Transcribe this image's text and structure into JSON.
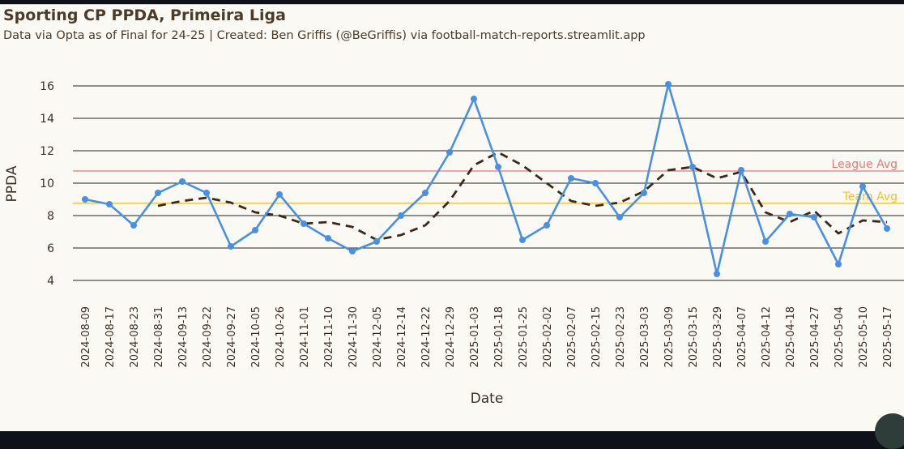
{
  "header": {
    "title": "Sporting CP PPDA, Primeira Liga",
    "subtitle": "Data via Opta as of Final for 24-25 | Created: Ben Griffis (@BeGriffis) via football-match-reports.streamlit.app"
  },
  "colors": {
    "background": "#fbf9f4",
    "series": "#4a90e2",
    "rolling": "#3a2a1a",
    "league_avg": "#e07b7b",
    "team_avg": "#f2c12e",
    "grid": "#222222"
  },
  "chart_data": {
    "type": "line",
    "title": "Sporting CP PPDA, Primeira Liga",
    "xlabel": "Date",
    "ylabel": "PPDA",
    "ylim": [
      3.5,
      16.5
    ],
    "yticks": [
      4,
      6,
      8,
      10,
      12,
      14,
      16
    ],
    "grid": "horizontal",
    "categories": [
      "2024-08-09",
      "2024-08-17",
      "2024-08-23",
      "2024-08-31",
      "2024-09-13",
      "2024-09-22",
      "2024-09-27",
      "2024-10-05",
      "2024-10-26",
      "2024-11-01",
      "2024-11-10",
      "2024-11-30",
      "2024-12-05",
      "2024-12-14",
      "2024-12-22",
      "2024-12-29",
      "2025-01-03",
      "2025-01-18",
      "2025-01-25",
      "2025-02-02",
      "2025-02-07",
      "2025-02-15",
      "2025-02-23",
      "2025-03-03",
      "2025-03-09",
      "2025-03-15",
      "2025-03-29",
      "2025-04-07",
      "2025-04-12",
      "2025-04-18",
      "2025-04-27",
      "2025-05-04",
      "2025-05-10",
      "2025-05-17"
    ],
    "series": [
      {
        "style": "solid-markers",
        "values": [
          9.0,
          8.7,
          7.4,
          9.4,
          10.1,
          9.4,
          6.1,
          7.1,
          9.3,
          7.5,
          6.6,
          5.8,
          6.4,
          8.0,
          9.4,
          11.9,
          15.2,
          11.0,
          6.5,
          7.4,
          10.3,
          10.0,
          7.9,
          9.4,
          16.1,
          11.0,
          4.4,
          10.8,
          6.4,
          8.1,
          7.9,
          5.0,
          9.8,
          7.2
        ]
      },
      {
        "style": "dashed",
        "values": [
          null,
          null,
          null,
          8.6,
          8.9,
          9.1,
          8.8,
          8.2,
          8.0,
          7.5,
          7.6,
          7.3,
          6.5,
          6.8,
          7.4,
          8.9,
          11.1,
          11.9,
          11.1,
          10.0,
          8.9,
          8.6,
          8.8,
          9.5,
          10.8,
          11.0,
          10.3,
          10.7,
          8.2,
          7.6,
          8.3,
          6.9,
          7.7,
          7.6
        ]
      }
    ],
    "reference_lines": [
      {
        "label": "League Avg",
        "value": 10.75
      },
      {
        "label": "Team Avg",
        "value": 8.76
      }
    ]
  }
}
